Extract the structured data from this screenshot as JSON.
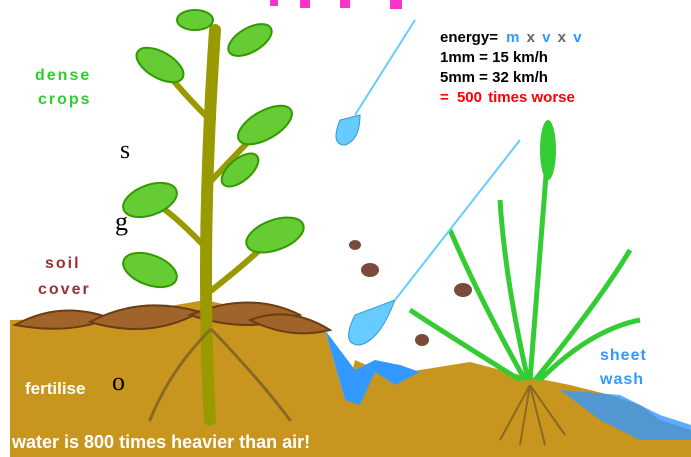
{
  "left_fragments": [
    "s",
    "g",
    "o"
  ],
  "labels": {
    "dense": "dense",
    "crops": "crops",
    "soil": "soil",
    "cover": "cover",
    "fertilise": "fertilise",
    "sheet": "sheet",
    "wash": "wash"
  },
  "caption": "water is 800 times heavier than air!",
  "formula": {
    "energy": "energy=",
    "terms": [
      "m",
      "x",
      "v",
      "x",
      "v"
    ],
    "line1": "1mm = 15 km/h",
    "line2": "5mm = 32 km/h",
    "eq": "=",
    "num": "500",
    "worse": "times worse"
  }
}
